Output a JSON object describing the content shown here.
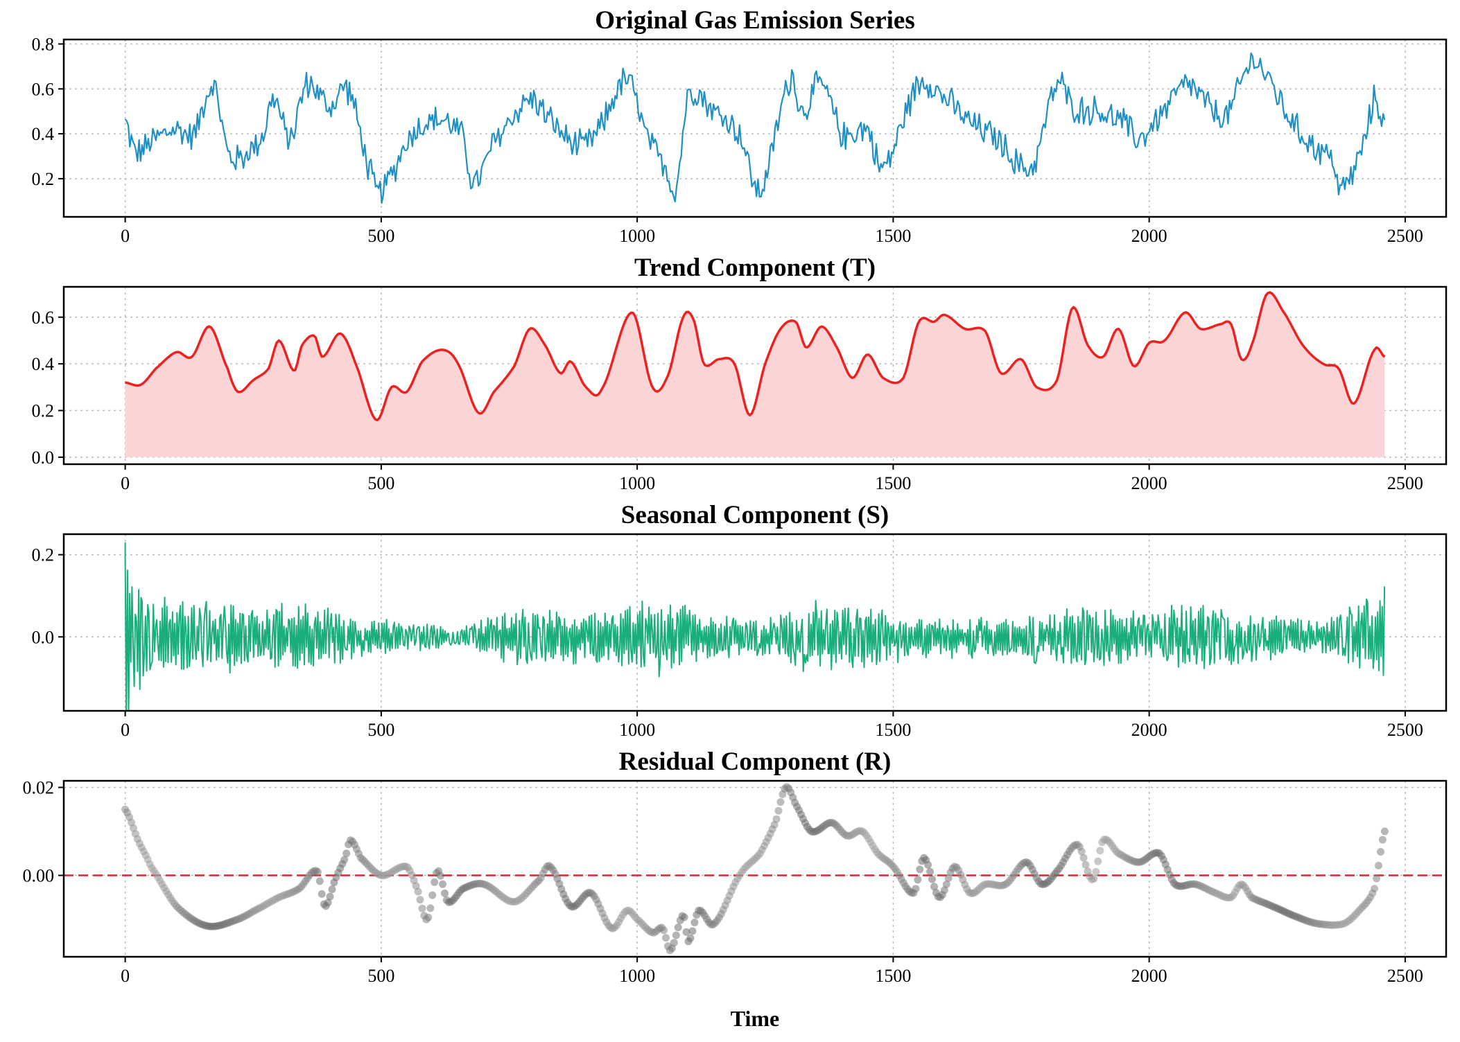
{
  "chart_data": [
    {
      "type": "line",
      "title": "Original Gas Emission Series",
      "xlabel": "",
      "ylabel": "",
      "xlim": [
        -120,
        2580
      ],
      "ylim": [
        0.03,
        0.82
      ],
      "xticks": [
        0,
        500,
        1000,
        1500,
        2000,
        2500
      ],
      "xtick_labels": [
        "0",
        "500",
        "1000",
        "1500",
        "2000",
        "2500"
      ],
      "yticks": [
        0.2,
        0.4,
        0.6,
        0.8
      ],
      "ytick_labels": [
        "0.2",
        "0.4",
        "0.6",
        "0.8"
      ],
      "grid": true,
      "color": "#1f8fc4",
      "series": [
        {
          "name": "Original",
          "noise": 0.06,
          "x": [
            0,
            20,
            60,
            100,
            135,
            160,
            175,
            200,
            230,
            270,
            290,
            320,
            355,
            400,
            435,
            480,
            500,
            560,
            620,
            660,
            680,
            720,
            790,
            830,
            880,
            920,
            980,
            1020,
            1060,
            1075,
            1100,
            1150,
            1200,
            1240,
            1300,
            1320,
            1360,
            1400,
            1450,
            1480,
            1550,
            1600,
            1650,
            1700,
            1770,
            1820,
            1850,
            1900,
            1950,
            1980,
            2020,
            2075,
            2100,
            2150,
            2200,
            2230,
            2280,
            2320,
            2360,
            2375,
            2420,
            2440,
            2460
          ],
          "y": [
            0.45,
            0.32,
            0.38,
            0.42,
            0.4,
            0.58,
            0.6,
            0.32,
            0.3,
            0.4,
            0.56,
            0.38,
            0.62,
            0.52,
            0.6,
            0.22,
            0.15,
            0.4,
            0.46,
            0.38,
            0.18,
            0.36,
            0.55,
            0.46,
            0.35,
            0.4,
            0.64,
            0.38,
            0.24,
            0.15,
            0.58,
            0.5,
            0.4,
            0.15,
            0.65,
            0.5,
            0.62,
            0.4,
            0.42,
            0.25,
            0.62,
            0.56,
            0.45,
            0.38,
            0.25,
            0.62,
            0.52,
            0.5,
            0.45,
            0.38,
            0.48,
            0.62,
            0.56,
            0.48,
            0.72,
            0.65,
            0.45,
            0.35,
            0.28,
            0.15,
            0.35,
            0.55,
            0.45
          ]
        }
      ]
    },
    {
      "type": "area",
      "title": "Trend Component (T)",
      "xlabel": "",
      "ylabel": "",
      "xlim": [
        -120,
        2580
      ],
      "ylim": [
        -0.03,
        0.73
      ],
      "xticks": [
        0,
        500,
        1000,
        1500,
        2000,
        2500
      ],
      "xtick_labels": [
        "0",
        "500",
        "1000",
        "1500",
        "2000",
        "2500"
      ],
      "yticks": [
        0.0,
        0.2,
        0.4,
        0.6
      ],
      "ytick_labels": [
        "0.0",
        "0.2",
        "0.4",
        "0.6"
      ],
      "grid": true,
      "color": "#ee2121",
      "fill_color": "#fbd5d5",
      "series": [
        {
          "name": "Trend",
          "x": [
            0,
            30,
            60,
            100,
            130,
            165,
            200,
            220,
            250,
            280,
            300,
            330,
            345,
            370,
            385,
            420,
            450,
            490,
            520,
            550,
            580,
            620,
            650,
            690,
            720,
            760,
            790,
            820,
            850,
            870,
            900,
            930,
            990,
            1030,
            1060,
            1090,
            1110,
            1130,
            1160,
            1190,
            1220,
            1250,
            1280,
            1310,
            1330,
            1360,
            1390,
            1420,
            1450,
            1480,
            1520,
            1550,
            1580,
            1600,
            1640,
            1680,
            1710,
            1750,
            1780,
            1820,
            1850,
            1880,
            1910,
            1940,
            1970,
            2000,
            2030,
            2070,
            2100,
            2140,
            2160,
            2180,
            2200,
            2230,
            2260,
            2300,
            2340,
            2370,
            2400,
            2440,
            2460
          ],
          "y": [
            0.32,
            0.31,
            0.38,
            0.45,
            0.43,
            0.56,
            0.38,
            0.28,
            0.33,
            0.38,
            0.5,
            0.37,
            0.48,
            0.52,
            0.43,
            0.53,
            0.4,
            0.16,
            0.3,
            0.28,
            0.41,
            0.46,
            0.4,
            0.19,
            0.28,
            0.39,
            0.55,
            0.48,
            0.36,
            0.41,
            0.3,
            0.29,
            0.62,
            0.3,
            0.35,
            0.6,
            0.59,
            0.4,
            0.42,
            0.4,
            0.18,
            0.4,
            0.55,
            0.58,
            0.47,
            0.56,
            0.47,
            0.34,
            0.44,
            0.34,
            0.34,
            0.58,
            0.58,
            0.61,
            0.55,
            0.54,
            0.36,
            0.42,
            0.3,
            0.33,
            0.64,
            0.48,
            0.43,
            0.55,
            0.39,
            0.49,
            0.5,
            0.62,
            0.55,
            0.57,
            0.57,
            0.42,
            0.48,
            0.7,
            0.63,
            0.48,
            0.4,
            0.38,
            0.23,
            0.46,
            0.43
          ]
        }
      ]
    },
    {
      "type": "line",
      "title": "Seasonal Component (S)",
      "xlabel": "",
      "ylabel": "",
      "xlim": [
        -120,
        2580
      ],
      "ylim": [
        -0.18,
        0.25
      ],
      "xticks": [
        0,
        500,
        1000,
        1500,
        2000,
        2500
      ],
      "xtick_labels": [
        "0",
        "500",
        "1000",
        "1500",
        "2000",
        "2500"
      ],
      "yticks": [
        0.0,
        0.2
      ],
      "ytick_labels": [
        "0.0",
        "0.2"
      ],
      "grid": true,
      "color": "#1aaf7a",
      "series": [
        {
          "name": "Seasonal",
          "amplitude_envelope": {
            "x": [
              0,
              10,
              40,
              80,
              200,
              350,
              500,
              600,
              650,
              750,
              900,
              1000,
              1050,
              1150,
              1250,
              1350,
              1450,
              1550,
              1700,
              1850,
              2000,
              2100,
              2250,
              2350,
              2420,
              2460
            ],
            "y": [
              0.23,
              0.17,
              0.1,
              0.09,
              0.08,
              0.075,
              0.04,
              0.03,
              0.02,
              0.06,
              0.06,
              0.08,
              0.09,
              0.05,
              0.05,
              0.08,
              0.07,
              0.05,
              0.05,
              0.07,
              0.06,
              0.08,
              0.05,
              0.04,
              0.1,
              0.13
            ]
          }
        }
      ]
    },
    {
      "type": "scatter",
      "title": "Residual Component (R)",
      "xlabel": "Time",
      "ylabel": "",
      "xlim": [
        -120,
        2580
      ],
      "ylim": [
        -0.0185,
        0.0215
      ],
      "xticks": [
        0,
        500,
        1000,
        1500,
        2000,
        2500
      ],
      "xtick_labels": [
        "0",
        "500",
        "1000",
        "1500",
        "2000",
        "2500"
      ],
      "yticks": [
        0.0,
        0.02
      ],
      "ytick_labels": [
        "0.00",
        "0.02"
      ],
      "grid": true,
      "color": "#888888",
      "reference_line": {
        "y": 0.0,
        "color": "#e0202e",
        "style": "dashed"
      },
      "series": [
        {
          "name": "Residual",
          "x": [
            0,
            25,
            50,
            100,
            160,
            220,
            270,
            300,
            340,
            375,
            390,
            410,
            430,
            440,
            460,
            500,
            550,
            570,
            590,
            610,
            630,
            660,
            700,
            760,
            810,
            830,
            870,
            910,
            950,
            980,
            1000,
            1030,
            1050,
            1065,
            1090,
            1100,
            1120,
            1150,
            1200,
            1240,
            1270,
            1290,
            1310,
            1340,
            1380,
            1410,
            1440,
            1470,
            1500,
            1540,
            1560,
            1590,
            1620,
            1650,
            1680,
            1720,
            1760,
            1790,
            1820,
            1860,
            1890,
            1910,
            1940,
            1980,
            2020,
            2050,
            2090,
            2130,
            2160,
            2180,
            2200,
            2240,
            2290,
            2330,
            2380,
            2410,
            2440,
            2460
          ],
          "y": [
            0.015,
            0.008,
            0.002,
            -0.007,
            -0.0115,
            -0.01,
            -0.007,
            -0.005,
            -0.003,
            0.001,
            -0.007,
            -0.001,
            0.004,
            0.008,
            0.004,
            0.0,
            0.002,
            -0.003,
            -0.01,
            0.001,
            -0.006,
            -0.003,
            -0.002,
            -0.006,
            -0.001,
            0.002,
            -0.007,
            -0.004,
            -0.012,
            -0.008,
            -0.01,
            -0.013,
            -0.012,
            -0.017,
            -0.009,
            -0.015,
            -0.008,
            -0.011,
            0.0,
            0.005,
            0.012,
            0.02,
            0.016,
            0.01,
            0.012,
            0.009,
            0.01,
            0.005,
            0.002,
            -0.004,
            0.004,
            -0.005,
            0.002,
            -0.004,
            -0.002,
            -0.002,
            0.003,
            -0.002,
            0.001,
            0.007,
            -0.001,
            0.008,
            0.005,
            0.003,
            0.005,
            -0.002,
            -0.002,
            -0.004,
            -0.005,
            -0.002,
            -0.005,
            -0.007,
            -0.0095,
            -0.011,
            -0.011,
            -0.008,
            -0.003,
            0.01
          ]
        }
      ]
    }
  ]
}
